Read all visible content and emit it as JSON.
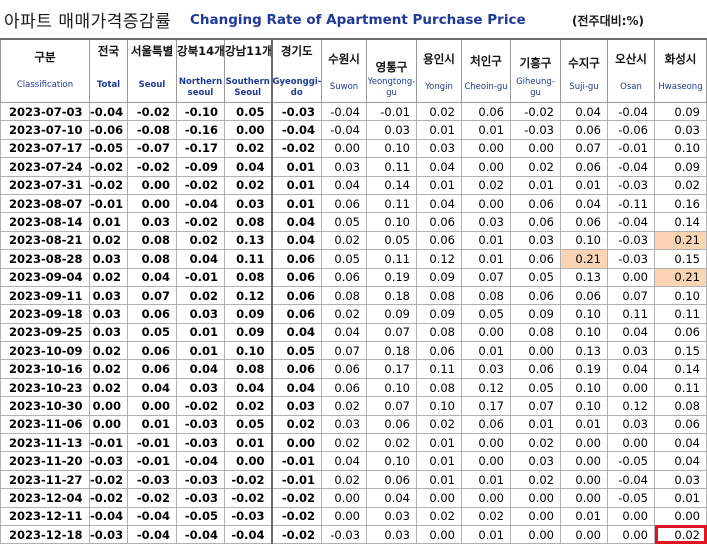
{
  "title": {
    "korean": "아파트 매매가격증감률",
    "english": "Changing Rate of Apartment Purchase Price",
    "unit": "(전주대비:%)"
  },
  "columns": [
    {
      "ko": "구분",
      "en": "Classification"
    },
    {
      "ko": "전국",
      "en": "Total"
    },
    {
      "ko": "서울특별",
      "en": "Seoul"
    },
    {
      "ko": "강북14개",
      "en": "Northern seoul"
    },
    {
      "ko": "강남11개",
      "en": "Southern Seoul"
    },
    {
      "ko": "경기도",
      "en": "Gyeonggi-do"
    },
    {
      "ko": "수원시",
      "en": "Suwon"
    },
    {
      "ko": "영통구",
      "en": "Yeongtong-gu"
    },
    {
      "ko": "용인시",
      "en": "Yongin"
    },
    {
      "ko": "처인구",
      "en": "Cheoin-gu"
    },
    {
      "ko": "기흥구",
      "en": "Giheung-gu"
    },
    {
      "ko": "수지구",
      "en": "Suji-gu"
    },
    {
      "ko": "오산시",
      "en": "Osan"
    },
    {
      "ko": "화성시",
      "en": "Hwaseong"
    }
  ],
  "rows": [
    {
      "date": "2023-07-03",
      "values": [
        "-0.04",
        "-0.02",
        "-0.10",
        "0.05",
        "-0.03",
        "-0.04",
        "-0.01",
        "0.02",
        "0.06",
        "-0.02",
        "0.04",
        "-0.04",
        "0.09"
      ]
    },
    {
      "date": "2023-07-10",
      "values": [
        "-0.06",
        "-0.08",
        "-0.16",
        "0.00",
        "-0.04",
        "-0.04",
        "0.03",
        "0.01",
        "0.01",
        "-0.03",
        "0.06",
        "-0.06",
        "0.03"
      ]
    },
    {
      "date": "2023-07-17",
      "values": [
        "-0.05",
        "-0.07",
        "-0.17",
        "0.02",
        "-0.02",
        "0.00",
        "0.10",
        "0.03",
        "0.00",
        "0.00",
        "0.07",
        "-0.01",
        "0.10"
      ]
    },
    {
      "date": "2023-07-24",
      "values": [
        "-0.02",
        "-0.02",
        "-0.09",
        "0.04",
        "0.01",
        "0.03",
        "0.11",
        "0.04",
        "0.00",
        "0.02",
        "0.06",
        "-0.04",
        "0.09"
      ]
    },
    {
      "date": "2023-07-31",
      "values": [
        "-0.02",
        "0.00",
        "-0.02",
        "0.02",
        "0.01",
        "0.04",
        "0.14",
        "0.01",
        "0.02",
        "0.01",
        "0.01",
        "-0.03",
        "0.02"
      ]
    },
    {
      "date": "2023-08-07",
      "values": [
        "-0.01",
        "0.00",
        "-0.04",
        "0.03",
        "0.01",
        "0.06",
        "0.11",
        "0.04",
        "0.00",
        "0.06",
        "0.04",
        "-0.11",
        "0.16"
      ]
    },
    {
      "date": "2023-08-14",
      "values": [
        "0.01",
        "0.03",
        "-0.02",
        "0.08",
        "0.04",
        "0.05",
        "0.10",
        "0.06",
        "0.03",
        "0.06",
        "0.06",
        "-0.04",
        "0.14"
      ]
    },
    {
      "date": "2023-08-21",
      "values": [
        "0.02",
        "0.08",
        "0.02",
        "0.13",
        "0.04",
        "0.02",
        "0.05",
        "0.06",
        "0.01",
        "0.03",
        "0.10",
        "-0.03",
        "0.21"
      ]
    },
    {
      "date": "2023-08-28",
      "values": [
        "0.03",
        "0.08",
        "0.04",
        "0.11",
        "0.06",
        "0.05",
        "0.11",
        "0.12",
        "0.01",
        "0.06",
        "0.21",
        "-0.03",
        "0.15"
      ]
    },
    {
      "date": "2023-09-04",
      "values": [
        "0.02",
        "0.04",
        "-0.01",
        "0.08",
        "0.06",
        "0.06",
        "0.19",
        "0.09",
        "0.07",
        "0.05",
        "0.13",
        "0.00",
        "0.21"
      ]
    },
    {
      "date": "2023-09-11",
      "values": [
        "0.03",
        "0.07",
        "0.02",
        "0.12",
        "0.06",
        "0.08",
        "0.18",
        "0.08",
        "0.08",
        "0.06",
        "0.06",
        "0.07",
        "0.10"
      ]
    },
    {
      "date": "2023-09-18",
      "values": [
        "0.03",
        "0.06",
        "0.03",
        "0.09",
        "0.06",
        "0.02",
        "0.09",
        "0.09",
        "0.05",
        "0.09",
        "0.10",
        "0.11",
        "0.11"
      ]
    },
    {
      "date": "2023-09-25",
      "values": [
        "0.03",
        "0.05",
        "0.01",
        "0.09",
        "0.04",
        "0.04",
        "0.07",
        "0.08",
        "0.00",
        "0.08",
        "0.10",
        "0.04",
        "0.06"
      ]
    },
    {
      "date": "2023-10-09",
      "values": [
        "0.02",
        "0.06",
        "0.01",
        "0.10",
        "0.05",
        "0.07",
        "0.18",
        "0.06",
        "0.01",
        "0.00",
        "0.13",
        "0.03",
        "0.15"
      ]
    },
    {
      "date": "2023-10-16",
      "values": [
        "0.02",
        "0.06",
        "0.04",
        "0.08",
        "0.06",
        "0.06",
        "0.17",
        "0.11",
        "0.03",
        "0.06",
        "0.19",
        "0.04",
        "0.14"
      ]
    },
    {
      "date": "2023-10-23",
      "values": [
        "0.02",
        "0.04",
        "0.03",
        "0.04",
        "0.04",
        "0.06",
        "0.10",
        "0.08",
        "0.12",
        "0.05",
        "0.10",
        "0.00",
        "0.11"
      ]
    },
    {
      "date": "2023-10-30",
      "values": [
        "0.00",
        "0.00",
        "-0.02",
        "0.02",
        "0.03",
        "0.02",
        "0.07",
        "0.10",
        "0.17",
        "0.07",
        "0.10",
        "0.12",
        "0.08"
      ]
    },
    {
      "date": "2023-11-06",
      "values": [
        "0.00",
        "0.01",
        "-0.03",
        "0.05",
        "0.02",
        "0.03",
        "0.06",
        "0.02",
        "0.06",
        "0.01",
        "0.01",
        "0.03",
        "0.06"
      ]
    },
    {
      "date": "2023-11-13",
      "values": [
        "-0.01",
        "-0.01",
        "-0.03",
        "0.01",
        "0.00",
        "0.02",
        "0.02",
        "0.01",
        "0.00",
        "0.02",
        "0.00",
        "0.00",
        "0.04"
      ]
    },
    {
      "date": "2023-11-20",
      "values": [
        "-0.03",
        "-0.01",
        "-0.04",
        "0.00",
        "-0.01",
        "0.04",
        "0.10",
        "0.01",
        "0.00",
        "0.03",
        "0.00",
        "-0.05",
        "0.04"
      ]
    },
    {
      "date": "2023-11-27",
      "values": [
        "-0.02",
        "-0.03",
        "-0.03",
        "-0.02",
        "-0.01",
        "0.02",
        "0.06",
        "0.01",
        "0.01",
        "0.02",
        "0.00",
        "-0.04",
        "0.03"
      ]
    },
    {
      "date": "2023-12-04",
      "values": [
        "-0.02",
        "-0.02",
        "-0.03",
        "-0.02",
        "-0.02",
        "0.00",
        "0.04",
        "0.00",
        "0.00",
        "0.00",
        "0.00",
        "-0.05",
        "0.01"
      ]
    },
    {
      "date": "2023-12-11",
      "values": [
        "-0.04",
        "-0.04",
        "-0.05",
        "-0.03",
        "-0.02",
        "0.00",
        "0.03",
        "0.02",
        "0.02",
        "0.00",
        "0.01",
        "0.00",
        "0.00"
      ]
    },
    {
      "date": "2023-12-18",
      "values": [
        "-0.03",
        "-0.04",
        "-0.04",
        "-0.04",
        "-0.02",
        "-0.03",
        "0.03",
        "0.00",
        "0.01",
        "0.00",
        "0.00",
        "0.00",
        "0.02"
      ]
    }
  ],
  "highlight_color": "#fbd4b4",
  "box_color": "#e0141e"
}
